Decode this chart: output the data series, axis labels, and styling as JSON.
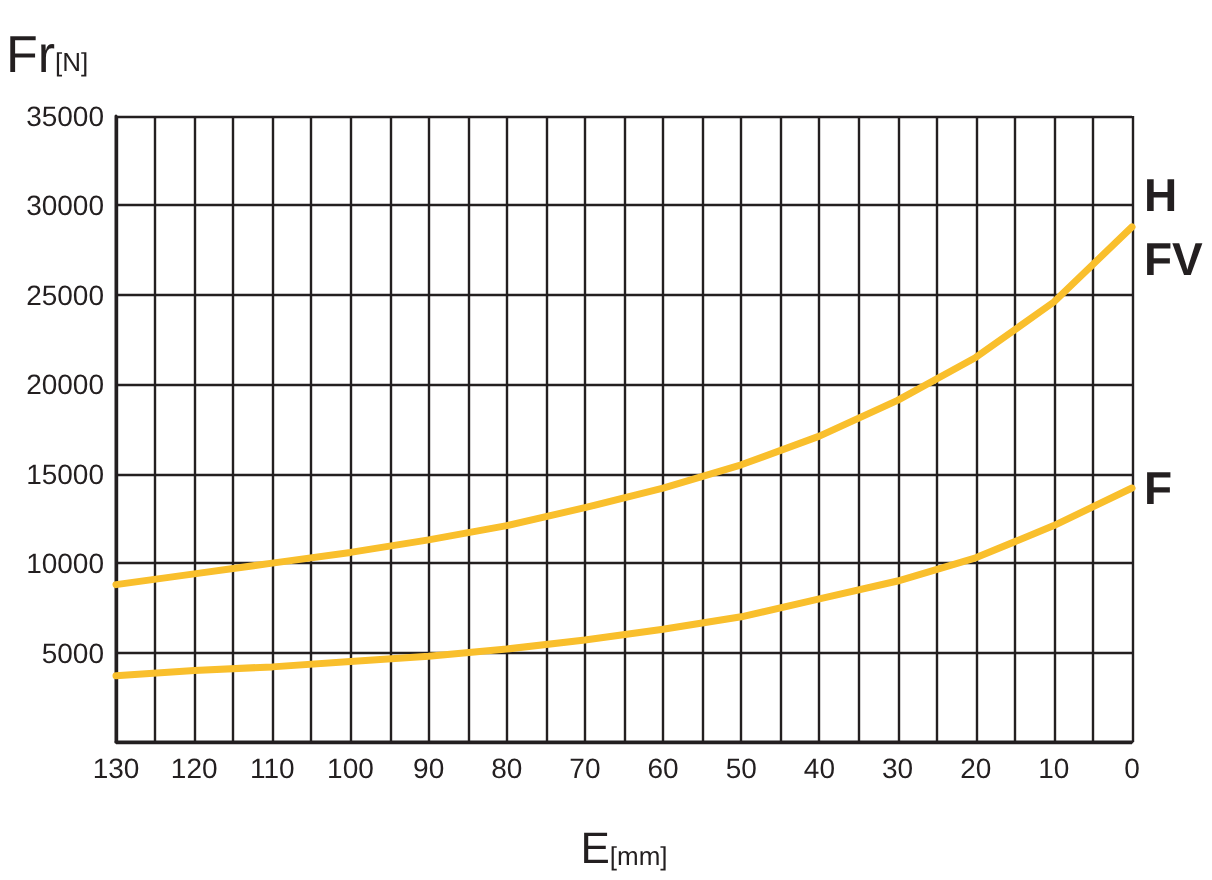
{
  "chart_data": {
    "type": "line",
    "xlabel": "E$_{[mm]}$",
    "ylabel": "Fr$_{[N]}$",
    "x": [
      130,
      120,
      110,
      100,
      90,
      80,
      70,
      60,
      50,
      40,
      30,
      20,
      10,
      0
    ],
    "series": [
      {
        "name": "H\nFV",
        "color": "#f9bf2c",
        "values": [
          8800,
          9400,
          10000,
          10600,
          11300,
          12100,
          13100,
          14200,
          15500,
          17100,
          19100,
          21500,
          24600,
          28800
        ]
      },
      {
        "name": "F",
        "color": "#f9bf2c",
        "values": [
          3700,
          4000,
          4200,
          4500,
          4800,
          5200,
          5700,
          6300,
          7000,
          8000,
          9000,
          10300,
          12100,
          14200
        ]
      }
    ],
    "xlim": [
      130,
      0
    ],
    "xticks": [
      130,
      {
        "value": 125,
        "label": null
      },
      120,
      {
        "value": 115,
        "label": null
      },
      110,
      {
        "value": 105,
        "label": null
      },
      100,
      {
        "value": 95,
        "label": null
      },
      90,
      {
        "value": 85,
        "label": null
      },
      80,
      {
        "value": 75,
        "label": null
      },
      70,
      {
        "value": 65,
        "label": null
      },
      60,
      {
        "value": 55,
        "label": null
      },
      50,
      {
        "value": 45,
        "label": null
      },
      40,
      {
        "value": 35,
        "label": null
      },
      30,
      {
        "value": 25,
        "label": null
      },
      20,
      {
        "value": 15,
        "label": null
      },
      10,
      {
        "value": 5,
        "label": null
      },
      0
    ],
    "ylim": [
      0,
      35000
    ],
    "yticks": [
      {
        "value": 0,
        "label": null
      },
      5000,
      10000,
      15000,
      20000,
      25000,
      30000,
      35000
    ],
    "grid": true,
    "marker": "none",
    "line_style": "solid"
  }
}
